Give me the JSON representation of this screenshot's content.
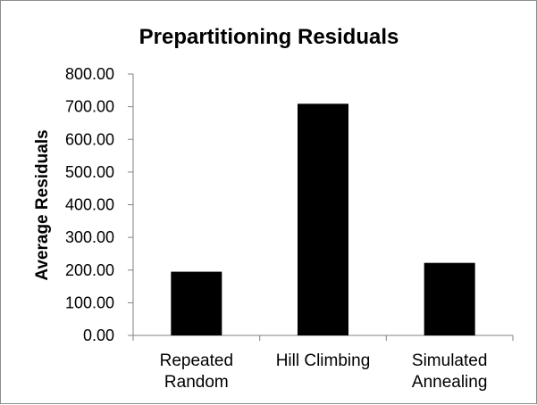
{
  "chart_data": {
    "type": "bar",
    "title": "Prepartitioning Residuals",
    "xlabel": "",
    "ylabel": "Average Residuals",
    "categories": [
      [
        "Repeated",
        "Random"
      ],
      [
        "Hill Climbing"
      ],
      [
        "Simulated",
        "Annealing"
      ]
    ],
    "values": [
      195,
      709,
      222
    ],
    "ylim": [
      0,
      800
    ],
    "yticks": [
      "0.00",
      "100.00",
      "200.00",
      "300.00",
      "400.00",
      "500.00",
      "600.00",
      "700.00",
      "800.00"
    ],
    "grid": false,
    "legend": "none",
    "bar_color": "#000000"
  }
}
